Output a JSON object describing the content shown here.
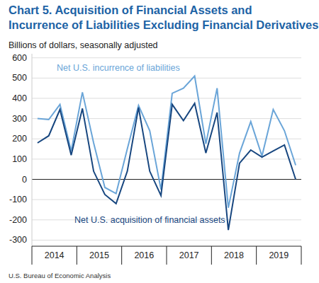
{
  "chart_data": {
    "type": "line",
    "title": [
      "Chart 5. Acquisition of Financial Assets and",
      "Incurrence of Liabilities Excluding Financial Derivatives"
    ],
    "subtitle": "Billions of dollars, seasonally adjusted",
    "source": "U.S. Bureau of Economic Analysis",
    "categories": [
      "2014",
      null,
      null,
      null,
      "2015",
      null,
      null,
      null,
      "2016",
      null,
      null,
      null,
      "2017",
      null,
      null,
      null,
      "2018",
      null,
      null,
      null,
      "2019",
      null,
      null,
      null
    ],
    "series": [
      {
        "name": "Net U.S. incurrence of liabilities",
        "color": "#6aa5d8",
        "values": [
          300,
          295,
          370,
          140,
          430,
          180,
          -40,
          -70,
          150,
          365,
          240,
          -50,
          425,
          450,
          510,
          175,
          450,
          -140,
          130,
          285,
          115,
          345,
          240,
          70
        ]
      },
      {
        "name": "Net U.S. acquisition of financial assets",
        "color": "#17467f",
        "values": [
          180,
          215,
          345,
          120,
          350,
          40,
          -75,
          -120,
          40,
          355,
          40,
          -80,
          370,
          290,
          375,
          130,
          330,
          -250,
          80,
          145,
          110,
          140,
          170,
          0
        ]
      }
    ],
    "ylim": [
      -330,
      620
    ],
    "yticks": [
      -300,
      -200,
      -100,
      0,
      100,
      200,
      300,
      400,
      500,
      600
    ],
    "grid": true
  }
}
